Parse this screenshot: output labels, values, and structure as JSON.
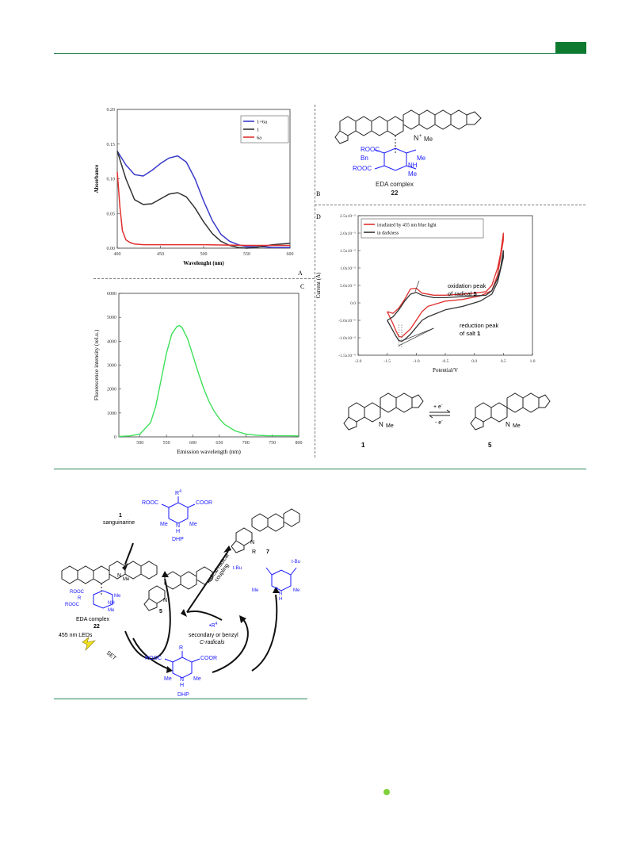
{
  "panel_labels": {
    "a": "A",
    "b": "B",
    "c": "C",
    "d": "D"
  },
  "struct_b": {
    "n_plus": "N",
    "charge": "+",
    "me": "Me",
    "rooc1": "ROOC",
    "bn": "Bn",
    "rooc2": "ROOC",
    "me2": "Me",
    "nh": "NH",
    "me3": "Me",
    "caption": "EDA complex",
    "number": "22"
  },
  "panel_d": {
    "annot_ox": "oxidation peak",
    "annot_ox2": "of radical ",
    "annot_ox_num": "5",
    "annot_red": "reduction peak",
    "annot_red2": "of salt ",
    "annot_red_num": "1",
    "eq_plus": "+ e",
    "eq_minus": "- e",
    "sup_minus": "-",
    "cmp1": "1",
    "cmp5": "5",
    "n_plus": "N",
    "me": "Me",
    "n": "N",
    "me5": "Me"
  },
  "scheme": {
    "sanguinarine_num": "1",
    "sanguinarine": "sanguinarine",
    "dhp_rooc": "ROOC",
    "dhp_coor": "COOR",
    "dhp_r4": "R",
    "dhp_r4_sup": "4",
    "dhp_me1": "Me",
    "dhp_me2": "Me",
    "dhp_h": "H",
    "dhp_n": "N",
    "dhp_label": "DHP",
    "eda_n": "N",
    "eda_me": "Me",
    "eda_rooc": "ROOC",
    "eda_r4": "R",
    "eda_me2": "Me",
    "eda_nh": "NH",
    "eda_rooc2": "ROOC",
    "eda_me3": "Me",
    "eda_caption": "EDA complex",
    "eda_num": "22",
    "leds": "455 nm LEDs",
    "set": "SET",
    "rad5_n": "N",
    "rad5_num": "5",
    "coupling1": "radical-radical",
    "coupling2": "coupling",
    "prod_n": "N",
    "prod_r4": "R",
    "prod_num": "7",
    "radical": "•R",
    "radical_sup": "4",
    "radical_desc1": "secondary or benzyl",
    "radical_desc2": "C-radicals",
    "pyr_tbu1": "t-Bu",
    "pyr_tbu2": "t-Bu",
    "pyr_me1": "Me",
    "pyr_me2": "Me",
    "pyr_n": "N",
    "pyr_h": "H",
    "pyr_plus": "+",
    "dhpc_rooc": "ROOC",
    "dhpc_coor": "COOR",
    "dhpc_r4": "R",
    "dhpc_me1": "Me",
    "dhpc_me2": "Me",
    "dhpc_n": "N",
    "dhpc_h": "H",
    "dhpc_label": "DHP"
  },
  "colors": {
    "blue": "#3a3acb",
    "black": "#333333",
    "red": "#e0302e",
    "green": "#3ee05a",
    "rule": "#2e8b57",
    "chemblue": "#1a1aff"
  },
  "chart_data": [
    {
      "type": "line",
      "title": "",
      "xlabel": "Wavelenght (nm)",
      "ylabel": "Absorbance",
      "xlim": [
        400,
        600
      ],
      "ylim": [
        0.0,
        0.2
      ],
      "xticks": [
        "400",
        "450",
        "500",
        "550",
        "600"
      ],
      "yticks": [
        "0.00",
        "0.05",
        "0.10",
        "0.15",
        "0.20"
      ],
      "legend_position": "top-right",
      "series": [
        {
          "name": "1+6a",
          "color": "#3a3acb",
          "x": [
            400,
            410,
            420,
            430,
            440,
            450,
            460,
            470,
            480,
            490,
            500,
            510,
            520,
            530,
            540,
            550,
            560,
            570,
            580,
            590,
            600
          ],
          "y": [
            0.14,
            0.12,
            0.106,
            0.104,
            0.112,
            0.122,
            0.13,
            0.133,
            0.124,
            0.1,
            0.068,
            0.04,
            0.02,
            0.01,
            0.005,
            0.002,
            0.002,
            0.002,
            0.001,
            0.001,
            0.001
          ]
        },
        {
          "name": "1",
          "color": "#333333",
          "x": [
            400,
            410,
            420,
            430,
            440,
            450,
            460,
            470,
            480,
            490,
            500,
            510,
            520,
            530,
            540,
            550,
            560,
            570,
            580,
            590,
            600
          ],
          "y": [
            0.14,
            0.1,
            0.07,
            0.063,
            0.064,
            0.071,
            0.078,
            0.08,
            0.074,
            0.058,
            0.038,
            0.021,
            0.01,
            0.004,
            0.001,
            0.0,
            0.001,
            0.003,
            0.005,
            0.006,
            0.007
          ]
        },
        {
          "name": "6a",
          "color": "#e0302e",
          "x": [
            400,
            403,
            406,
            410,
            415,
            420,
            430,
            450,
            500,
            550,
            600
          ],
          "y": [
            0.11,
            0.06,
            0.025,
            0.012,
            0.008,
            0.006,
            0.005,
            0.005,
            0.005,
            0.004,
            0.004
          ]
        }
      ]
    },
    {
      "type": "line",
      "title": "",
      "xlabel": "Emission wavelength (nm)",
      "ylabel": "Fluorescence intensity (rel.u.)",
      "xlim": [
        460,
        800
      ],
      "ylim": [
        0,
        6000
      ],
      "xticks": [
        "500",
        "550",
        "600",
        "650",
        "700",
        "750",
        "800"
      ],
      "yticks": [
        "0",
        "1000",
        "2000",
        "3000",
        "4000",
        "5000",
        "6000"
      ],
      "series": [
        {
          "name": "",
          "color": "#3ee05a",
          "x": [
            460,
            480,
            500,
            520,
            530,
            540,
            550,
            560,
            570,
            575,
            580,
            590,
            600,
            610,
            620,
            630,
            640,
            650,
            660,
            680,
            700,
            720,
            740,
            760,
            780,
            800
          ],
          "y": [
            20,
            40,
            120,
            600,
            1300,
            2400,
            3500,
            4300,
            4620,
            4650,
            4550,
            4100,
            3400,
            2700,
            2050,
            1500,
            1080,
            760,
            520,
            250,
            120,
            70,
            50,
            45,
            45,
            40
          ]
        }
      ]
    },
    {
      "type": "line",
      "title": "",
      "xlabel": "Potential/V",
      "ylabel": "Current (A)",
      "xlim": [
        -2.0,
        1.0
      ],
      "ylim": [
        -1.5e-05,
        2.5e-05
      ],
      "xticks": [
        "-2.0",
        "-1.5",
        "-1.0",
        "-0.5",
        "0.0",
        "0.5",
        "1.0"
      ],
      "yticks": [
        "-1.5x10⁻⁵",
        "-1.0x10⁻⁵",
        "-5.0x10⁻⁶",
        "0.0",
        "5.0x10⁻⁶",
        "1.0x10⁻⁵",
        "1.5x10⁻⁵",
        "2.0x10⁻⁵",
        "2.5x10⁻⁵"
      ],
      "legend_position": "top-left",
      "series": [
        {
          "name": "irradiated by 455 nm blue light",
          "color": "#e0302e",
          "x": [
            -1.5,
            -1.4,
            -1.3,
            -1.2,
            -1.1,
            -1.0,
            -0.9,
            -0.7,
            -0.5,
            -0.2,
            0.0,
            0.2,
            0.3,
            0.4,
            0.45,
            0.5,
            0.5,
            0.4,
            0.3,
            0.1,
            -0.2,
            -0.5,
            -0.8,
            -0.9,
            -1.0,
            -1.1,
            -1.2,
            -1.25,
            -1.3,
            -1.35,
            -1.4,
            -1.5
          ],
          "y": [
            -2.5e-06,
            -3e-06,
            -1.5e-06,
            1e-06,
            4e-06,
            4.2e-06,
            2.8e-06,
            2.2e-06,
            2.2e-06,
            2.5e-06,
            2.8e-06,
            3.2e-06,
            5e-06,
            1e-05,
            1.4e-05,
            2e-05,
            1.8e-05,
            8e-06,
            3.5e-06,
            2e-06,
            1e-06,
            5e-07,
            -1e-06,
            -2.5e-06,
            -5e-06,
            -7.5e-06,
            -9e-06,
            -9.8e-06,
            -9.6e-06,
            -8e-06,
            -6e-06,
            -2.5e-06
          ]
        },
        {
          "name": "in darkness",
          "color": "#333333",
          "x": [
            -1.5,
            -1.4,
            -1.3,
            -1.2,
            -1.1,
            -1.0,
            -0.9,
            -0.7,
            -0.5,
            -0.2,
            0.0,
            0.2,
            0.3,
            0.4,
            0.45,
            0.5,
            0.5,
            0.4,
            0.3,
            0.1,
            -0.2,
            -0.5,
            -0.8,
            -0.9,
            -1.0,
            -1.1,
            -1.2,
            -1.25,
            -1.3,
            -1.35,
            -1.4,
            -1.5
          ],
          "y": [
            -5e-06,
            -4e-06,
            -2e-06,
            5e-07,
            2.5e-06,
            3e-06,
            2.2e-06,
            1.5e-06,
            1.5e-06,
            1.8e-06,
            2e-06,
            2.2e-06,
            3.5e-06,
            7e-06,
            1e-05,
            1.5e-05,
            1.3e-05,
            6e-06,
            2.5e-06,
            5e-07,
            -1e-06,
            -2e-06,
            -4e-06,
            -5e-06,
            -7e-06,
            -9e-06,
            -1.05e-05,
            -1.1e-05,
            -1.08e-05,
            -9.5e-06,
            -8e-06,
            -5e-06
          ]
        }
      ]
    }
  ]
}
